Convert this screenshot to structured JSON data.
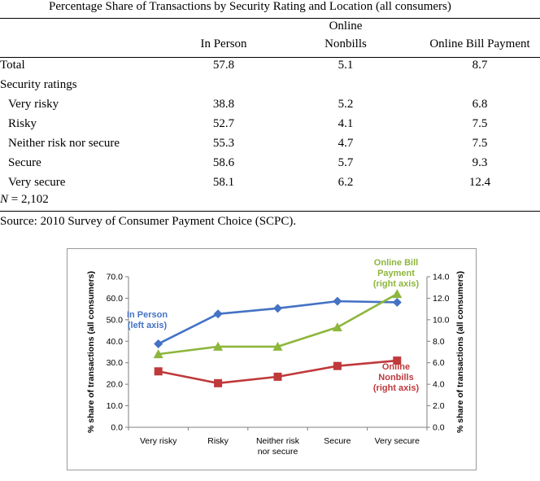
{
  "table": {
    "title": "Percentage Share of Transactions by Security Rating and Location (all consumers)",
    "headers": {
      "in_person": "In Person",
      "online_nonbills_top": "Online",
      "online_nonbills_bottom": "Nonbills",
      "online_bill": "Online Bill Payment"
    },
    "total": {
      "label": "Total",
      "v1": "57.8",
      "v2": "5.1",
      "v3": "8.7"
    },
    "section_label": "Security ratings",
    "rows": [
      {
        "label": "Very risky",
        "v1": "38.8",
        "v2": "5.2",
        "v3": "6.8"
      },
      {
        "label": "Risky",
        "v1": "52.7",
        "v2": "4.1",
        "v3": "7.5"
      },
      {
        "label": "Neither risk nor secure",
        "v1": "55.3",
        "v2": "4.7",
        "v3": "7.5"
      },
      {
        "label": "Secure",
        "v1": "58.6",
        "v2": "5.7",
        "v3": "9.3"
      },
      {
        "label": "Very secure",
        "v1": "58.1",
        "v2": "6.2",
        "v3": "12.4"
      }
    ],
    "n_symbol": "N",
    "n_value": " = 2,102",
    "source": "Source: 2010 Survey of Consumer Payment Choice (SCPC)."
  },
  "chart_data": {
    "type": "line",
    "categories": [
      "Very risky",
      "Risky",
      "Neither risk nor secure",
      "Secure",
      "Very secure"
    ],
    "category_lines": [
      [
        "Very risky"
      ],
      [
        "Risky"
      ],
      [
        "Neither risk",
        "nor secure"
      ],
      [
        "Secure"
      ],
      [
        "Very secure"
      ]
    ],
    "ylabel_left": "% share of transactions (all consumers)",
    "ylabel_right": "% share of transactions (all consumers)",
    "ylim_left": [
      0,
      70
    ],
    "ylim_right": [
      0,
      14
    ],
    "yticks_left": [
      "0.0",
      "10.0",
      "20.0",
      "30.0",
      "40.0",
      "50.0",
      "60.0",
      "70.0"
    ],
    "yticks_right": [
      "0.0",
      "2.0",
      "4.0",
      "6.0",
      "8.0",
      "10.0",
      "12.0",
      "14.0"
    ],
    "grid": false,
    "series": [
      {
        "name": "In Person (left axis)",
        "label_lines": [
          "In Person",
          "(left axis)"
        ],
        "axis": "left",
        "values": [
          38.8,
          52.7,
          55.3,
          58.6,
          58.1
        ],
        "color": "#4472C4",
        "marker": "diamond"
      },
      {
        "name": "Online Nonbills (right axis)",
        "label_lines": [
          "Online",
          "Nonbills",
          "(right axis)"
        ],
        "axis": "right",
        "values": [
          5.2,
          4.1,
          4.7,
          5.7,
          6.2
        ],
        "color": "#C0393B",
        "marker": "square"
      },
      {
        "name": "Online Bill Payment (right axis)",
        "label_lines": [
          "Online Bill",
          "Payment",
          "(right axis)"
        ],
        "axis": "right",
        "values": [
          6.8,
          7.5,
          7.5,
          9.3,
          12.4
        ],
        "color": "#8DB63C",
        "marker": "triangle"
      }
    ]
  }
}
